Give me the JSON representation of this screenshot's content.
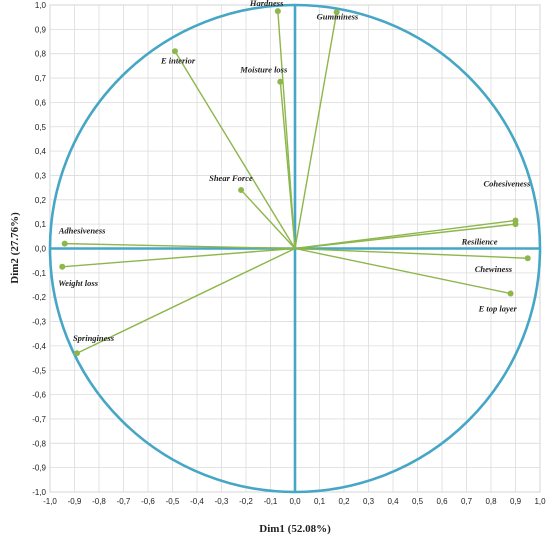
{
  "chart_data": {
    "type": "scatter",
    "title": "",
    "xlabel": "Dim1 (52.08%)",
    "ylabel": "Dim2 (27.76%)",
    "xlim": [
      -1.0,
      1.0
    ],
    "ylim": [
      -1.0,
      1.0
    ],
    "xticks": [
      "-1,0",
      "-0,9",
      "-0,8",
      "-0,7",
      "-0,6",
      "-0,5",
      "-0,4",
      "-0,3",
      "-0,2",
      "-0,1",
      "0,0",
      "0,1",
      "0,2",
      "0,3",
      "0,4",
      "0,5",
      "0,6",
      "0,7",
      "0,8",
      "0,9",
      "1,0"
    ],
    "yticks": [
      "1,0",
      "0,9",
      "0,8",
      "0,7",
      "0,6",
      "0,5",
      "0,4",
      "0,3",
      "0,2",
      "0,1",
      "0,0",
      "-0,1",
      "-0,2",
      "-0,3",
      "-0,4",
      "-0,5",
      "-0,6",
      "-0,7",
      "-0,8",
      "-0,9",
      "-1,0"
    ],
    "grid": true,
    "unit_circle": true,
    "vectors_from_origin": true,
    "points": [
      {
        "name": "Hardness",
        "x": -0.07,
        "y": 0.975
      },
      {
        "name": "Gumminess",
        "x": 0.17,
        "y": 0.97
      },
      {
        "name": "E interior",
        "x": -0.49,
        "y": 0.81
      },
      {
        "name": "Moisture loss",
        "x": -0.06,
        "y": 0.685
      },
      {
        "name": "Shear Force",
        "x": -0.22,
        "y": 0.24
      },
      {
        "name": "Adhesiveness",
        "x": -0.94,
        "y": 0.02
      },
      {
        "name": "Weight loss",
        "x": -0.95,
        "y": -0.075
      },
      {
        "name": "Springiness",
        "x": -0.89,
        "y": -0.43
      },
      {
        "name": "Cohesiveness",
        "x": 0.9,
        "y": 0.115
      },
      {
        "name": "Resilience",
        "x": 0.9,
        "y": 0.1
      },
      {
        "name": "Chewiness",
        "x": 0.95,
        "y": -0.04
      },
      {
        "name": "E top layer",
        "x": 0.88,
        "y": -0.185
      }
    ]
  },
  "colors": {
    "axis": "#46a6c6",
    "vector": "#8db64b",
    "grid": "#dcdcdc"
  }
}
